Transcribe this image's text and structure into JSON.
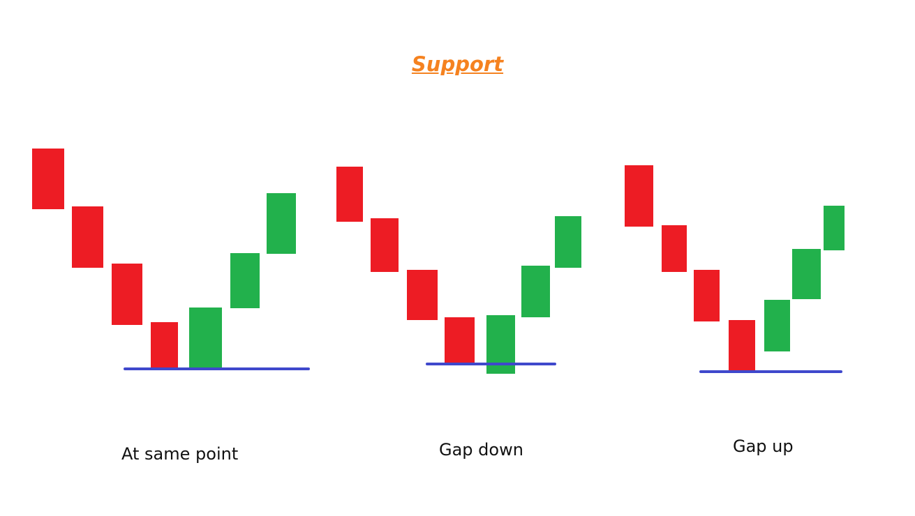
{
  "title": "Support",
  "colors": {
    "bearish": "#ed1c24",
    "bullish": "#22b14c",
    "support_line": "#3f48cc",
    "title": "#f58220"
  },
  "patterns": [
    {
      "caption": "At same point",
      "candles": [
        "bearish",
        "bearish",
        "bearish",
        "bearish",
        "bullish",
        "bullish",
        "bullish"
      ]
    },
    {
      "caption": "Gap down",
      "candles": [
        "bearish",
        "bearish",
        "bearish",
        "bearish",
        "bullish",
        "bullish",
        "bullish"
      ]
    },
    {
      "caption": "Gap up",
      "candles": [
        "bearish",
        "bearish",
        "bearish",
        "bearish",
        "bullish",
        "bullish",
        "bullish"
      ]
    }
  ]
}
